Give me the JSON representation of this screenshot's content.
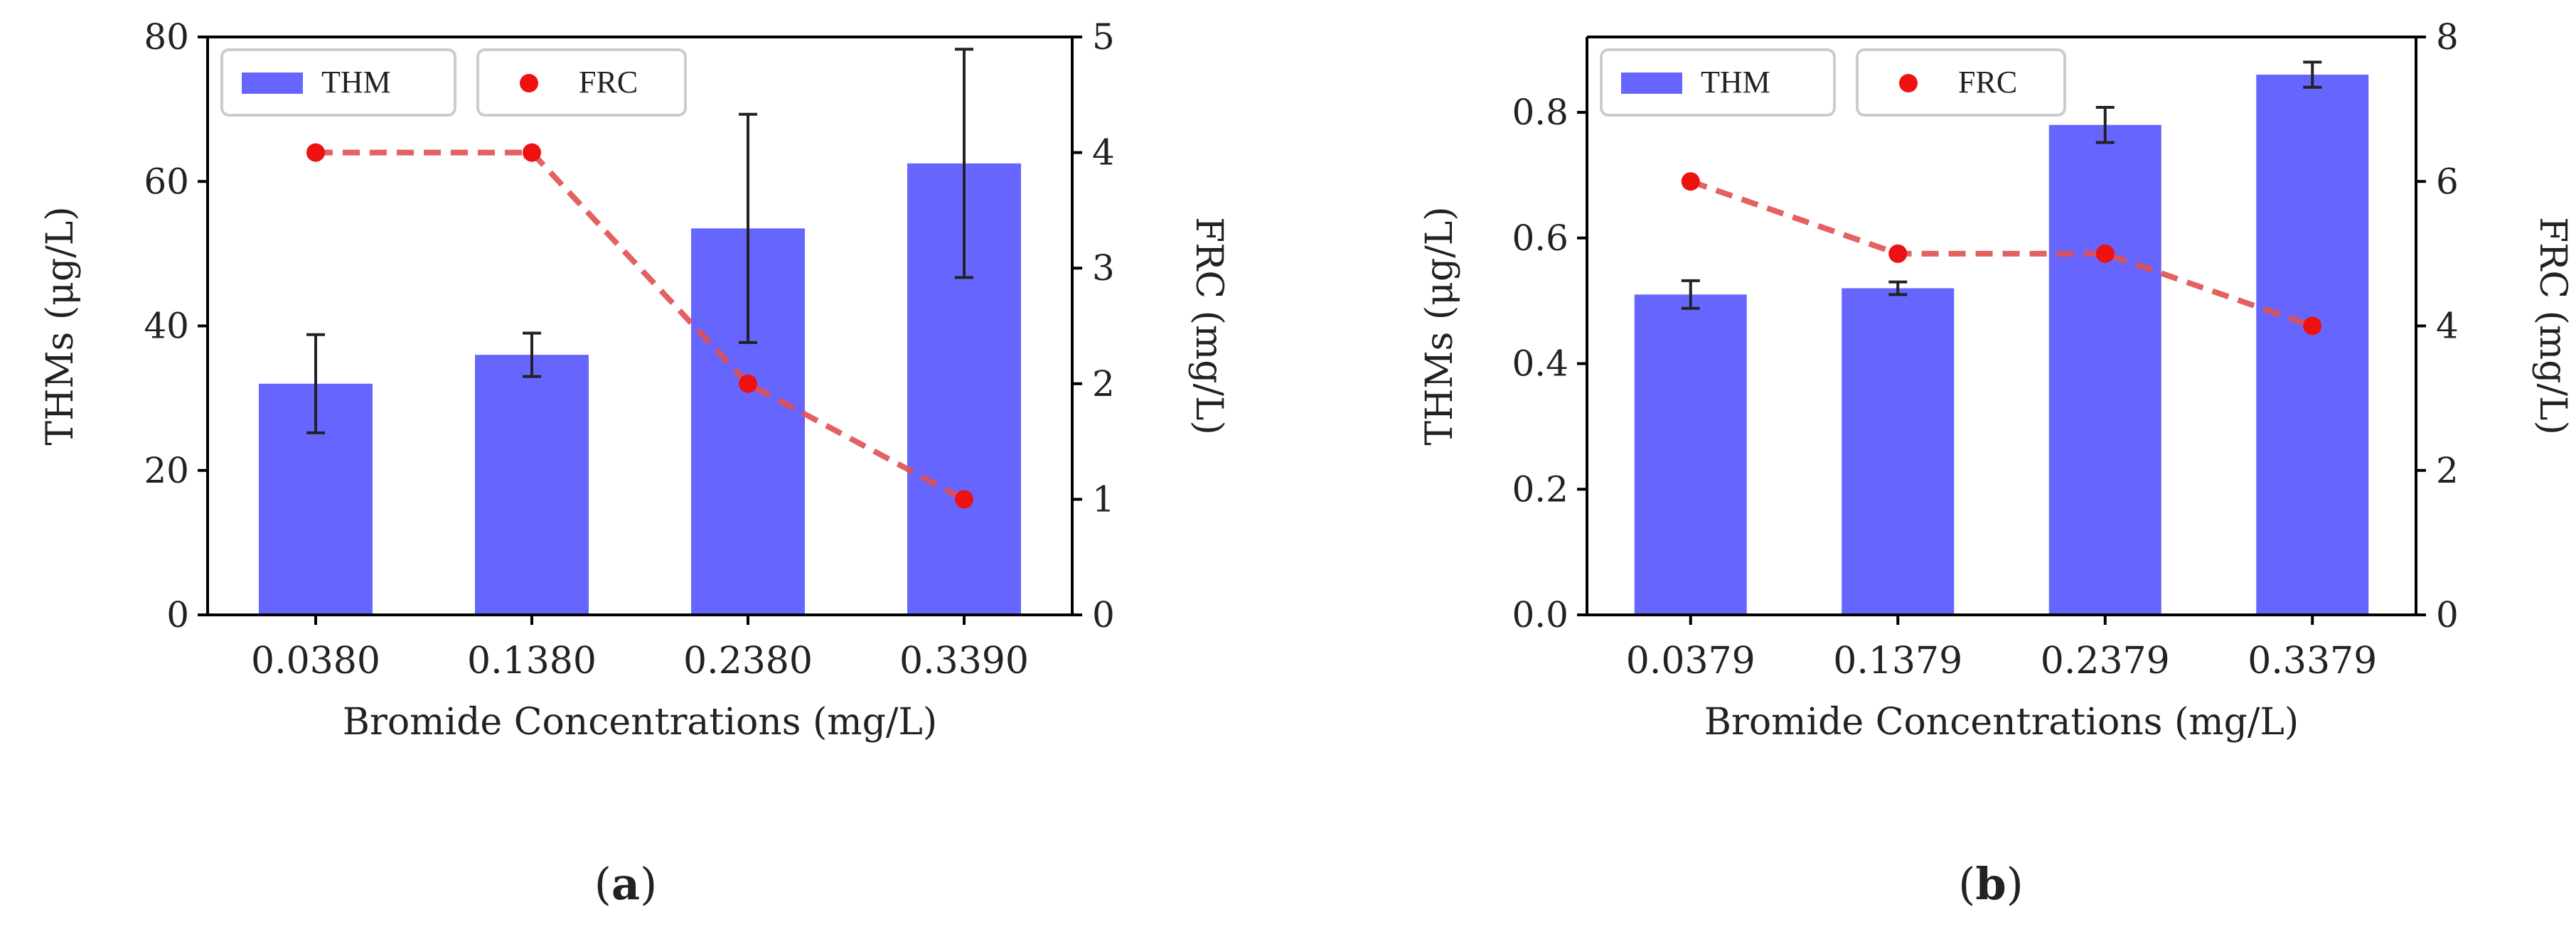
{
  "colors": {
    "bar": "#6666ff",
    "line": "#e05050",
    "point": "#ee1111",
    "errorbar": "#222222",
    "axis": "#000000",
    "legend_border": "#cccccc"
  },
  "chart_data": [
    {
      "type": "bar",
      "panel": "a",
      "caption": {
        "open": "(",
        "letter": "a",
        "close": ")"
      },
      "xlabel": "Bromide Concentrations (mg/L)",
      "ylabel_left": "THMs (μg/L)",
      "ylabel_right": "FRC (mg/L)",
      "categories": [
        "0.0380",
        "0.1380",
        "0.2380",
        "0.3390"
      ],
      "ylim_left": [
        0,
        80
      ],
      "yticks_left": [
        0,
        20,
        40,
        60,
        80
      ],
      "ylim_right": [
        0,
        5
      ],
      "yticks_right": [
        0,
        1,
        2,
        3,
        4,
        5
      ],
      "series": [
        {
          "name": "THM",
          "kind": "bar",
          "axis": "left",
          "values": [
            32,
            36,
            53.5,
            62.5
          ],
          "errors": [
            6.8,
            3,
            15.8,
            15.8
          ]
        },
        {
          "name": "FRC",
          "kind": "line",
          "style": "dashed",
          "axis": "right",
          "values": [
            4,
            4,
            2,
            1
          ]
        }
      ],
      "legend": [
        {
          "label": "THM",
          "marker": "bar"
        },
        {
          "label": "FRC",
          "marker": "point"
        }
      ],
      "grid": false
    },
    {
      "type": "bar",
      "panel": "b",
      "caption": {
        "open": "(",
        "letter": "b",
        "close": ")"
      },
      "xlabel": "Bromide Concentrations (mg/L)",
      "ylabel_left": "THMs (μg/L)",
      "ylabel_right": "FRC (mg/L)",
      "categories": [
        "0.0379",
        "0.1379",
        "0.2379",
        "0.3379"
      ],
      "ylim_left": [
        0,
        0.92
      ],
      "yticks_left": [
        "0.0",
        "0.2",
        "0.4",
        "0.6",
        "0.8"
      ],
      "ylim_right": [
        0,
        8
      ],
      "yticks_right": [
        0,
        2,
        4,
        6,
        8
      ],
      "series": [
        {
          "name": "THM",
          "kind": "bar",
          "axis": "left",
          "values": [
            0.51,
            0.52,
            0.78,
            0.86
          ],
          "errors": [
            0.022,
            0.01,
            0.028,
            0.02
          ]
        },
        {
          "name": "FRC",
          "kind": "line",
          "style": "dashed",
          "axis": "right",
          "values": [
            6,
            5,
            5,
            4
          ]
        }
      ],
      "legend": [
        {
          "label": "THM",
          "marker": "bar"
        },
        {
          "label": "FRC",
          "marker": "point"
        }
      ],
      "grid": false
    }
  ]
}
